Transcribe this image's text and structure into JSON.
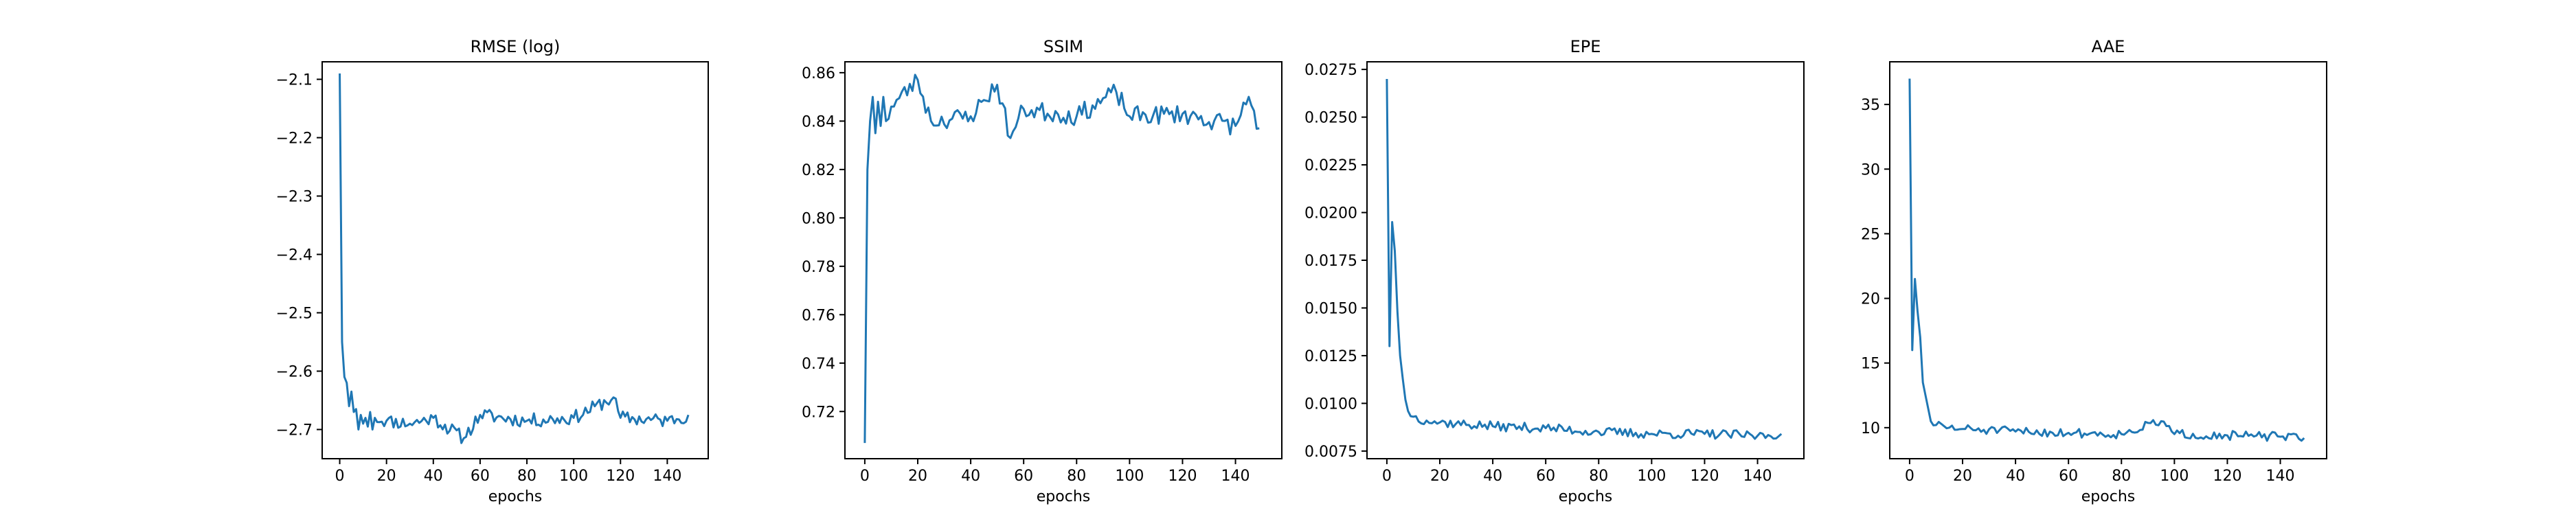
{
  "chart_data": [
    {
      "type": "line",
      "title": "RMSE (log)",
      "xlabel": "epochs",
      "ylabel": "",
      "xlim": [
        -7.5,
        157.5
      ],
      "ylim": [
        -2.75,
        -2.07
      ],
      "xticks": [
        0,
        20,
        40,
        60,
        80,
        100,
        120,
        140
      ],
      "xtick_labels": [
        "0",
        "20",
        "40",
        "60",
        "80",
        "100",
        "120",
        "140"
      ],
      "yticks": [
        -2.1,
        -2.2,
        -2.3,
        -2.4,
        -2.5,
        -2.6,
        -2.7
      ],
      "ytick_labels": [
        "−2.1",
        "−2.2",
        "−2.3",
        "−2.4",
        "−2.5",
        "−2.6",
        "−2.7"
      ],
      "grid": false,
      "color": "#1f77b4",
      "anchors": [
        [
          0,
          -2.09
        ],
        [
          1,
          -2.55
        ],
        [
          2,
          -2.61
        ],
        [
          3,
          -2.62
        ],
        [
          4,
          -2.66
        ],
        [
          5,
          -2.635
        ],
        [
          6,
          -2.67
        ],
        [
          7,
          -2.665
        ],
        [
          8,
          -2.7
        ],
        [
          9,
          -2.675
        ],
        [
          10,
          -2.69
        ],
        [
          11,
          -2.68
        ],
        [
          12,
          -2.695
        ],
        [
          13,
          -2.67
        ],
        [
          14,
          -2.7
        ],
        [
          15,
          -2.68
        ],
        [
          20,
          -2.685
        ],
        [
          30,
          -2.69
        ],
        [
          40,
          -2.68
        ],
        [
          53,
          -2.715
        ],
        [
          60,
          -2.675
        ],
        [
          80,
          -2.685
        ],
        [
          100,
          -2.68
        ],
        [
          117,
          -2.645
        ],
        [
          120,
          -2.68
        ],
        [
          140,
          -2.685
        ],
        [
          149,
          -2.675
        ]
      ],
      "noise": 0.012,
      "seed": 11
    },
    {
      "type": "line",
      "title": "SSIM",
      "xlabel": "epochs",
      "ylabel": "",
      "xlim": [
        -7.5,
        157.5
      ],
      "ylim": [
        0.7005,
        0.8645
      ],
      "xticks": [
        0,
        20,
        40,
        60,
        80,
        100,
        120,
        140
      ],
      "xtick_labels": [
        "0",
        "20",
        "40",
        "60",
        "80",
        "100",
        "120",
        "140"
      ],
      "yticks": [
        0.72,
        0.74,
        0.76,
        0.78,
        0.8,
        0.82,
        0.84,
        0.86
      ],
      "ytick_labels": [
        "0.72",
        "0.74",
        "0.76",
        "0.78",
        "0.80",
        "0.82",
        "0.84",
        "0.86"
      ],
      "grid": false,
      "color": "#1f77b4",
      "anchors": [
        [
          0,
          0.707
        ],
        [
          1,
          0.82
        ],
        [
          2,
          0.84
        ],
        [
          3,
          0.85
        ],
        [
          4,
          0.835
        ],
        [
          5,
          0.848
        ],
        [
          6,
          0.838
        ],
        [
          7,
          0.85
        ],
        [
          8,
          0.84
        ],
        [
          10,
          0.846
        ],
        [
          20,
          0.857
        ],
        [
          25,
          0.84
        ],
        [
          40,
          0.842
        ],
        [
          50,
          0.855
        ],
        [
          55,
          0.833
        ],
        [
          60,
          0.845
        ],
        [
          80,
          0.842
        ],
        [
          95,
          0.852
        ],
        [
          100,
          0.842
        ],
        [
          120,
          0.843
        ],
        [
          140,
          0.838
        ],
        [
          145,
          0.85
        ],
        [
          149,
          0.837
        ]
      ],
      "noise": 0.004,
      "seed": 23
    },
    {
      "type": "line",
      "title": "EPE",
      "xlabel": "epochs",
      "ylabel": "",
      "xlim": [
        -7.5,
        157.5
      ],
      "ylim": [
        0.0071,
        0.0279
      ],
      "xticks": [
        0,
        20,
        40,
        60,
        80,
        100,
        120,
        140
      ],
      "xtick_labels": [
        "0",
        "20",
        "40",
        "60",
        "80",
        "100",
        "120",
        "140"
      ],
      "yticks": [
        0.0075,
        0.01,
        0.0125,
        0.015,
        0.0175,
        0.02,
        0.0225,
        0.025,
        0.0275
      ],
      "ytick_labels": [
        "0.0075",
        "0.0100",
        "0.0125",
        "0.0150",
        "0.0175",
        "0.0200",
        "0.0225",
        "0.0250",
        "0.0275"
      ],
      "grid": false,
      "color": "#1f77b4",
      "anchors": [
        [
          0,
          0.027
        ],
        [
          1,
          0.013
        ],
        [
          2,
          0.0195
        ],
        [
          3,
          0.018
        ],
        [
          4,
          0.0148
        ],
        [
          5,
          0.0125
        ],
        [
          6,
          0.0113
        ],
        [
          7,
          0.0102
        ],
        [
          8,
          0.0096
        ],
        [
          10,
          0.0093
        ],
        [
          15,
          0.0091
        ],
        [
          20,
          0.009
        ],
        [
          40,
          0.0088
        ],
        [
          60,
          0.0087
        ],
        [
          80,
          0.0085
        ],
        [
          100,
          0.0084
        ],
        [
          120,
          0.0084
        ],
        [
          140,
          0.0083
        ],
        [
          149,
          0.0084
        ]
      ],
      "noise": 0.00025,
      "seed": 37
    },
    {
      "type": "line",
      "title": "AAE",
      "xlabel": "epochs",
      "ylabel": "",
      "xlim": [
        -7.5,
        157.5
      ],
      "ylim": [
        7.6,
        38.3
      ],
      "xticks": [
        0,
        20,
        40,
        60,
        80,
        100,
        120,
        140
      ],
      "xtick_labels": [
        "0",
        "20",
        "40",
        "60",
        "80",
        "100",
        "120",
        "140"
      ],
      "yticks": [
        10,
        15,
        20,
        25,
        30,
        35
      ],
      "ytick_labels": [
        "10",
        "15",
        "20",
        "25",
        "30",
        "35"
      ],
      "grid": false,
      "color": "#1f77b4",
      "anchors": [
        [
          0,
          37
        ],
        [
          1,
          16
        ],
        [
          2,
          21.5
        ],
        [
          3,
          19
        ],
        [
          4,
          17
        ],
        [
          5,
          13.5
        ],
        [
          6,
          12.5
        ],
        [
          7,
          11.5
        ],
        [
          8,
          10.5
        ],
        [
          10,
          10.2
        ],
        [
          15,
          10
        ],
        [
          20,
          9.9
        ],
        [
          40,
          9.7
        ],
        [
          60,
          9.6
        ],
        [
          80,
          9.5
        ],
        [
          95,
          10.5
        ],
        [
          100,
          9.5
        ],
        [
          120,
          9.4
        ],
        [
          140,
          9.3
        ],
        [
          149,
          9.2
        ]
      ],
      "noise": 0.35,
      "seed": 51
    }
  ]
}
